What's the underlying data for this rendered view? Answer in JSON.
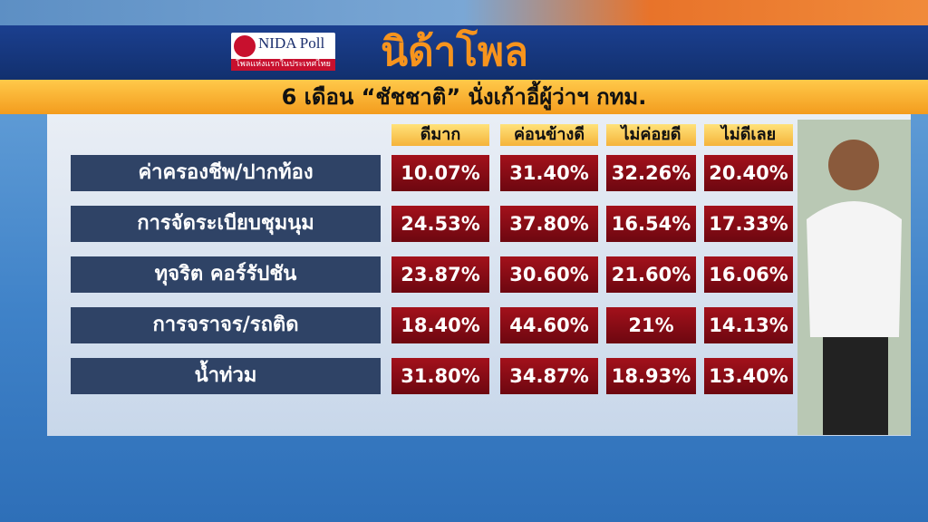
{
  "header": {
    "logo_name": "NIDA Poll",
    "logo_tagline": "โพลแห่งแรกในประเทศไทย",
    "title": "นิด้าโพล",
    "subtitle": "6 เดือน  “ชัชชาติ” นั่งเก้าอี้ผู้ว่าฯ กทม."
  },
  "table": {
    "columns": [
      "ดีมาก",
      "ค่อนข้างดี",
      "ไม่ค่อยดี",
      "ไม่ดีเลย"
    ],
    "rows": [
      {
        "label": "ค่าครองชีพ/ปากท้อง",
        "cells": [
          "10.07%",
          "31.40%",
          "32.26%",
          "20.40%"
        ]
      },
      {
        "label": "การจัดระเบียบชุมนุม",
        "cells": [
          "24.53%",
          "37.80%",
          "16.54%",
          "17.33%"
        ]
      },
      {
        "label": "ทุจริต คอร์รัปชัน",
        "cells": [
          "23.87%",
          "30.60%",
          "21.60%",
          "16.06%"
        ]
      },
      {
        "label": "การจราจร/รถติด",
        "cells": [
          "18.40%",
          "44.60%",
          "21%",
          "14.13%"
        ]
      },
      {
        "label": "น้ำท่วม",
        "cells": [
          "31.80%",
          "34.87%",
          "18.93%",
          "13.40%"
        ]
      }
    ]
  }
}
